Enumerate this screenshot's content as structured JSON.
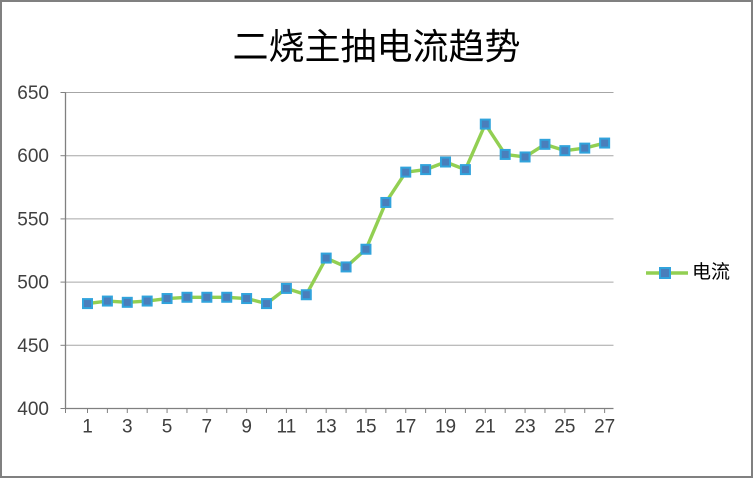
{
  "chart_data": {
    "type": "line",
    "title": "二烧主抽电流趋势",
    "categories": [
      1,
      2,
      3,
      4,
      5,
      6,
      7,
      8,
      9,
      10,
      11,
      12,
      13,
      14,
      15,
      16,
      17,
      18,
      19,
      20,
      21,
      22,
      23,
      24,
      25,
      26,
      27
    ],
    "series": [
      {
        "name": "电流",
        "values": [
          483,
          485,
          484,
          485,
          487,
          488,
          488,
          488,
          487,
          483,
          495,
          490,
          519,
          512,
          526,
          563,
          587,
          589,
          595,
          589,
          625,
          601,
          599,
          609,
          604,
          606,
          610
        ],
        "line_color": "#92CF52",
        "marker_fill": "#4A7EBB",
        "marker_border": "#31A3DC"
      }
    ],
    "xlabel": "",
    "ylabel": "",
    "ylim": [
      400,
      650
    ],
    "yticks": [
      400,
      450,
      500,
      550,
      600,
      650
    ],
    "xticks_shown": [
      1,
      3,
      5,
      7,
      9,
      11,
      13,
      15,
      17,
      19,
      21,
      23,
      25,
      27
    ],
    "grid": "horizontal",
    "legend_position": "right",
    "colors": {
      "grid": "#A6A6A6",
      "axis": "#808080",
      "tick_label": "#404040",
      "title": "#000000",
      "background": "#FFFFFF",
      "frame_border": "#808080"
    }
  }
}
